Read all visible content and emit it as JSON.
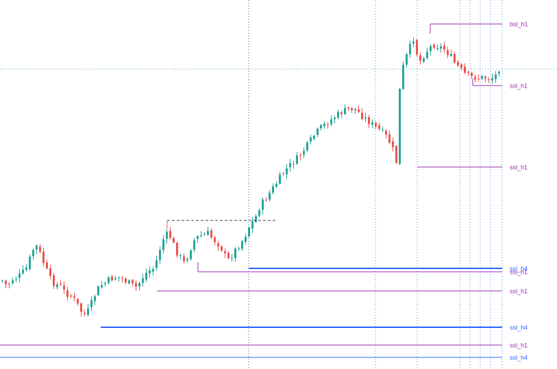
{
  "chart_data": {
    "type": "candlestick",
    "title": "",
    "colors": {
      "bullish": "#26a69a",
      "bearish": "#ef5350",
      "h1_level": "#9c27b0",
      "h4_level": "#2962ff",
      "break_line": "#000000",
      "vertical_guides": "#2962ff",
      "crosshair": "#00897b"
    },
    "price_range": [
      0,
      539
    ],
    "bar_count": 146,
    "levels": [
      {
        "label": "bsl_h1",
        "tf": "h1",
        "price": 35,
        "start_bar": 126
      },
      {
        "label": "ssl_h1",
        "tf": "h1",
        "price": 125,
        "start_bar": 138
      },
      {
        "label": "ssl_h1",
        "tf": "h1",
        "price": 244,
        "start_bar": 122
      },
      {
        "label": "ssl_h4",
        "tf": "h4",
        "price": 392,
        "start_bar": 73
      },
      {
        "label": "ssl_h1",
        "tf": "h1",
        "price": 397,
        "start_bar": 58
      },
      {
        "label": "ssl_h1",
        "tf": "h1",
        "price": 425,
        "start_bar": 46
      },
      {
        "label": "ssl_h4",
        "tf": "h4",
        "price": 478,
        "start_bar": 29
      },
      {
        "label": "ssl_h1",
        "tf": "h1",
        "price": 504,
        "start_bar": 0
      },
      {
        "label": "ssl_h4",
        "tf": "h4",
        "price": 522,
        "start_bar": 0
      }
    ],
    "break_line": {
      "price": 322,
      "from_bar": 49,
      "to_bar": 81
    },
    "vertical_guides_bars": [
      72,
      109,
      121,
      134,
      137,
      140,
      143,
      146
    ],
    "crosshair": {
      "bar": 72,
      "price": 101
    }
  }
}
